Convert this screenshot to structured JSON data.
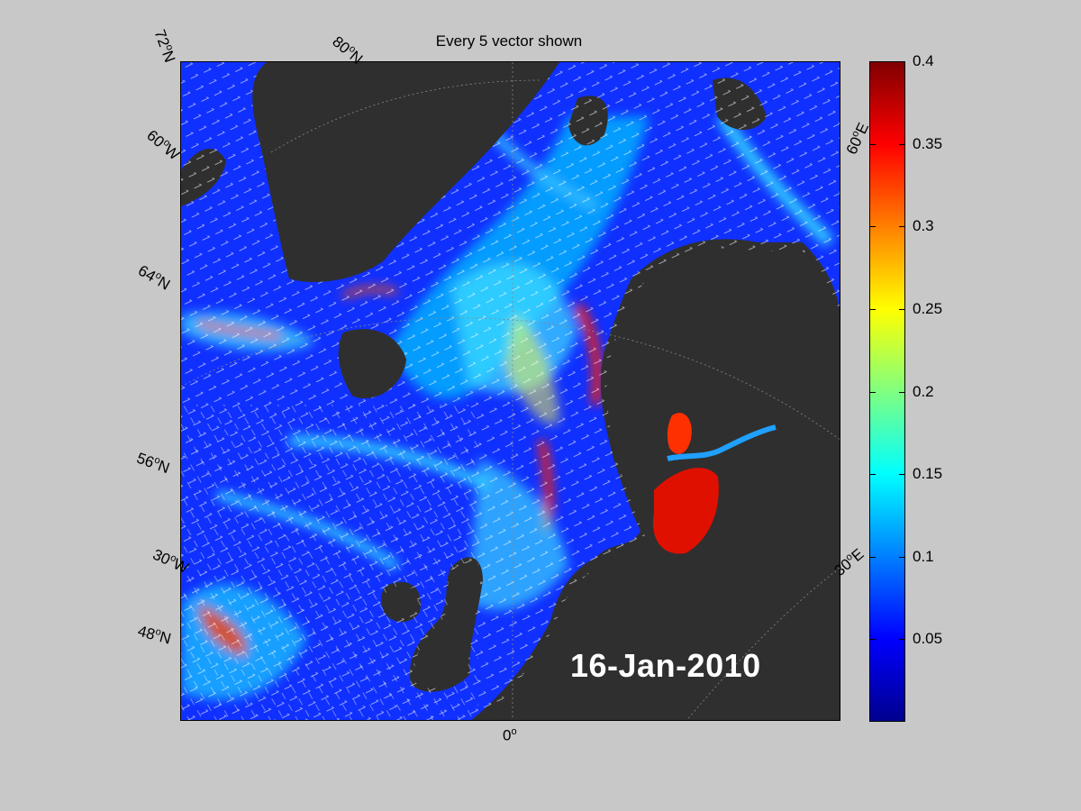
{
  "title": "Every 5 vector shown",
  "date": "16-Jan-2010",
  "graticule_labels": {
    "lat_72": "72°N",
    "lat_80": "80°N",
    "lon_60w": "60°W",
    "lat_64": "64°N",
    "lat_56": "56°N",
    "lon_30w": "30°W",
    "lat_48": "48°N",
    "lon_0": "0°",
    "lon_30e": "30°E",
    "lon_60e": "60°E"
  },
  "colorbar": {
    "min": 0,
    "max": 0.4,
    "ticks": [
      "0.05",
      "0.1",
      "0.15",
      "0.2",
      "0.25",
      "0.3",
      "0.35",
      "0.4"
    ],
    "colors": [
      "#00008f",
      "#0000ff",
      "#0080ff",
      "#00ffff",
      "#80ff80",
      "#ffff00",
      "#ff8000",
      "#ff0000",
      "#800000"
    ]
  },
  "map_colors": {
    "ocean": "#1030ff",
    "land": "#2f2f2f",
    "ice": "#777777",
    "vector": "#ffffff"
  }
}
